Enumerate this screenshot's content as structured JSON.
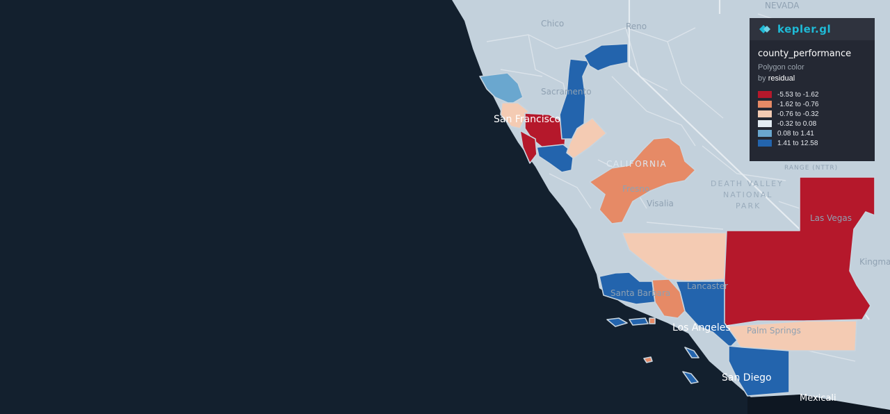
{
  "legend": {
    "brand": "kepler.gl",
    "layer_name": "county_performance",
    "property": "Polygon color",
    "by_prefix": "by",
    "field": "residual",
    "bins": [
      {
        "label": "-5.53 to -1.62",
        "color": "#b5182b"
      },
      {
        "label": "-1.62 to -0.76",
        "color": "#e68a66"
      },
      {
        "label": "-0.76 to -0.32",
        "color": "#f4cbb3"
      },
      {
        "label": "-0.32 to 0.08",
        "color": "#e3ecf3"
      },
      {
        "label": "0.08 to 1.41",
        "color": "#6aa7cf"
      },
      {
        "label": "1.41 to 12.58",
        "color": "#2364ad"
      }
    ]
  },
  "map": {
    "place_labels": {
      "san_francisco": "San Francisco",
      "los_angeles": "Los Angeles",
      "san_diego": "San Diego",
      "mexicali": "Mexicali",
      "fresno": "Fresno",
      "visalia": "Visalia",
      "sacramento": "Sacramento",
      "santa_barbara": "Santa Barbara",
      "lancaster": "Lancaster",
      "palm_springs": "Palm Springs",
      "las_vegas": "Las Vegas",
      "kingman": "Kingman",
      "reno": "Reno",
      "chico": "Chico",
      "nevada": "NEVADA",
      "california": "CALIFORNIA",
      "death_valley_1": "DEATH VALLEY",
      "death_valley_2": "NATIONAL",
      "death_valley_3": "PARK",
      "range": "RANGE (NTTR)"
    }
  }
}
